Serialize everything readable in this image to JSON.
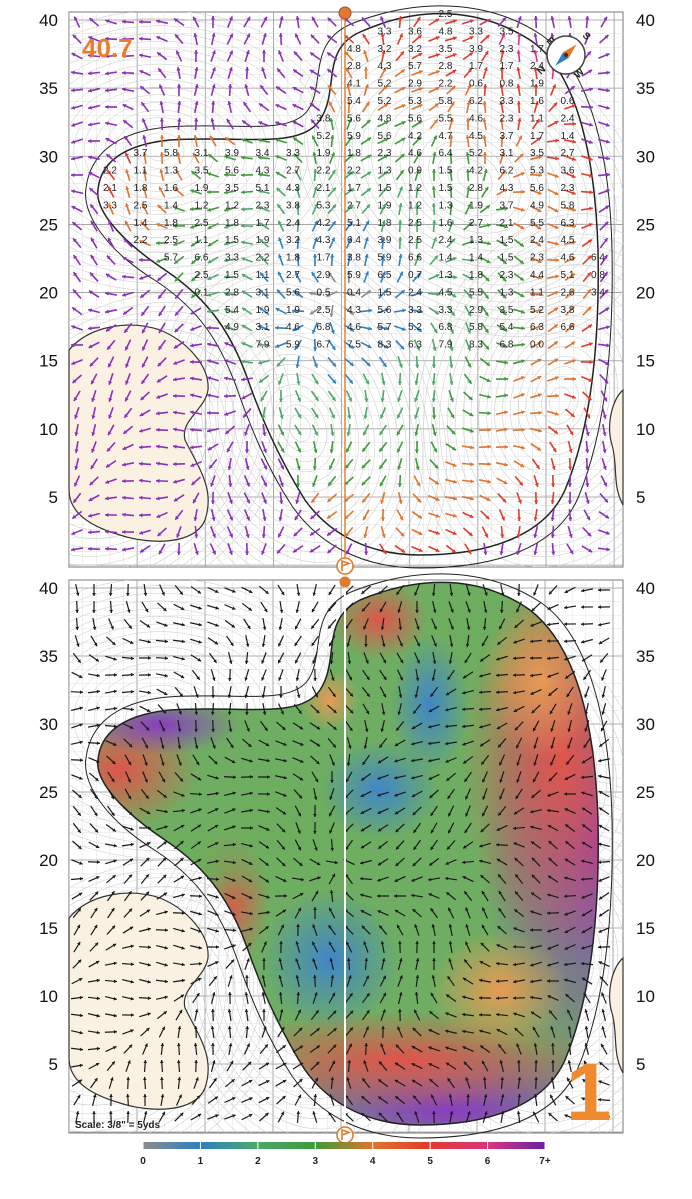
{
  "hole_number": "1",
  "green_depth": "40.7",
  "scale_note": "Scale: 3/8\" = 5yds",
  "axis_labels": [
    "5",
    "10",
    "15",
    "20",
    "25",
    "30",
    "35",
    "40"
  ],
  "legend": {
    "labels": [
      "0",
      "1",
      "2",
      "3",
      "4",
      "5",
      "6",
      "7+"
    ],
    "colors": [
      "#8c8c8c",
      "#2f7fc1",
      "#4aa86a",
      "#3e9a3a",
      "#e0742e",
      "#e23b2b",
      "#d8357f",
      "#6a1fa8"
    ]
  },
  "compass": {
    "labels": [
      "N",
      "E",
      "S",
      "W"
    ]
  },
  "slope_values_top": [
    "2.5",
    "3.3",
    "3.6",
    "4.8",
    "3.3",
    "3.5",
    "4.8",
    "3.2",
    "3.2",
    "3.5",
    "3.9",
    "2.3",
    "1.7",
    "2.8",
    "4.3",
    "5.7",
    "2.8",
    "1.7",
    "1.7",
    "2.4",
    "4.1",
    "5.2",
    "2.9",
    "2.2",
    "0.6",
    "0.8",
    "1.9",
    "5.4",
    "5.2",
    "5.3",
    "5.8",
    "6.2",
    "3.3",
    "1.6",
    "0.6",
    "3.8",
    "5.6",
    "4.8",
    "5.6",
    "5.5",
    "4.6",
    "2.3",
    "1.1",
    "2.4",
    "5.2",
    "5.9",
    "5.6",
    "4.2",
    "4.7",
    "4.5",
    "3.7",
    "1.7",
    "1.4",
    "3.7",
    "5.8",
    "3.1",
    "3.9",
    "3.4",
    "3.3",
    "1.9",
    "1.8",
    "2.3",
    "4.6",
    "6.4",
    "5.2",
    "3.1",
    "3.5",
    "2.7",
    "2.2",
    "1.1",
    "1.3",
    "3.5",
    "5.6",
    "4.3",
    "2.7",
    "2.2",
    "2.2",
    "1.3",
    "0.9",
    "1.5",
    "4.2",
    "6.2",
    "5.3",
    "3.6",
    "2.1",
    "1.8",
    "1.6",
    "1.9",
    "3.5",
    "5.1",
    "4.3",
    "2.1",
    "1.7",
    "1.5",
    "1.2",
    "1.5",
    "2.8",
    "4.3",
    "5.6",
    "2.3",
    "3.3",
    "2.5",
    "1.4",
    "1.2",
    "1.2",
    "2.3",
    "3.8",
    "5.3",
    "2.7",
    "1.9",
    "1.2",
    "1.3",
    "1.9",
    "3.7",
    "4.9",
    "5.8",
    "1.4",
    "1.8",
    "2.5",
    "1.8",
    "1.7",
    "2.4",
    "4.2",
    "5.1",
    "1.8",
    "2.5",
    "1.6",
    "2.7",
    "2.1",
    "5.5",
    "6.3",
    "2.2",
    "2.5",
    "1.1",
    "1.5",
    "1.9",
    "3.2",
    "4.3",
    "6.4",
    "3.9",
    "2.5",
    "2.4",
    "1.3",
    "1.5",
    "2.4",
    "4.5",
    "5.7",
    "6.6",
    "3.3",
    "2.2",
    "1.8",
    "1.7",
    "3.8",
    "5.9",
    "6.6",
    "1.4",
    "1.4",
    "1.5",
    "2.3",
    "4.6",
    "6.4",
    "2.5",
    "1.5",
    "1.1",
    "2.7",
    "2.9",
    "5.9",
    "6.5",
    "0.7",
    "1.3",
    "1.8",
    "2.3",
    "4.4",
    "5.1",
    "0.8",
    "0.1",
    "2.8",
    "3.1",
    "5.6",
    "0.5",
    "0.4",
    "1.5",
    "2.4",
    "4.5",
    "5.5",
    "1.3",
    "1.1",
    "2.6",
    "3.4",
    "5.4",
    "1.9",
    "1.9",
    "2.5",
    "4.3",
    "5.6",
    "3.3",
    "3.3",
    "2.9",
    "3.5",
    "5.2",
    "3.8",
    "4.9",
    "3.1",
    "4.6",
    "6.8",
    "4.6",
    "5.7",
    "5.2",
    "6.8",
    "5.8",
    "5.4",
    "6.3",
    "6.6",
    "7.9",
    "5.9",
    "6.7",
    "7.5",
    "8.3",
    "6.3",
    "7.9",
    "8.3",
    "6.8",
    "0.0"
  ]
}
